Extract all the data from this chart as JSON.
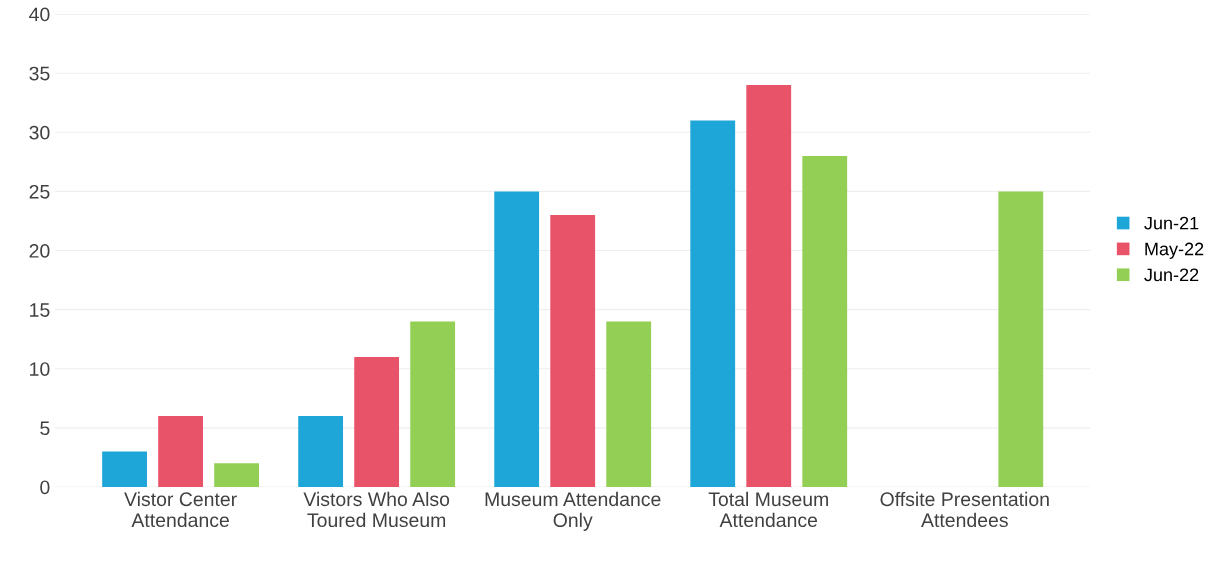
{
  "chart_data": {
    "type": "bar",
    "categories": [
      "Vistor Center\nAttendance",
      "Vistors Who Also\nToured Museum",
      "Museum Attendance\nOnly",
      "Total Museum\nAttendance",
      "Offsite Presentation\nAttendees"
    ],
    "series": [
      {
        "name": "Jun-21",
        "color": "#1ea6d9",
        "values": [
          3,
          6,
          25,
          31,
          null
        ]
      },
      {
        "name": "May-22",
        "color": "#e9536a",
        "values": [
          6,
          11,
          23,
          34,
          null
        ]
      },
      {
        "name": "Jun-22",
        "color": "#93cf55",
        "values": [
          2,
          14,
          14,
          28,
          25
        ]
      }
    ],
    "ylim": [
      0,
      40
    ],
    "yticks": [
      0,
      5,
      10,
      15,
      20,
      25,
      30,
      35,
      40
    ],
    "grid": "y",
    "legend": "right"
  }
}
